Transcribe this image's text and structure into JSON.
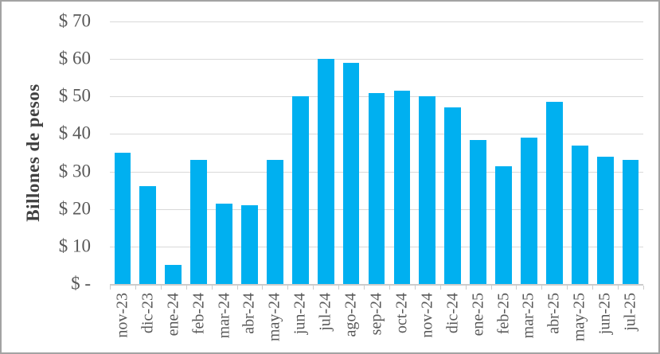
{
  "chart_data": {
    "type": "bar",
    "title": "",
    "ylabel": "Billones de pesos",
    "xlabel": "",
    "categories": [
      "nov-23",
      "dic-23",
      "ene-24",
      "feb-24",
      "mar-24",
      "abr-24",
      "may-24",
      "jun-24",
      "jul-24",
      "ago-24",
      "sep-24",
      "oct-24",
      "nov-24",
      "dic-24",
      "ene-25",
      "feb-25",
      "mar-25",
      "abr-25",
      "may-25",
      "jun-25",
      "jul-25"
    ],
    "values": [
      35,
      26,
      5,
      33,
      21.5,
      21,
      33,
      50,
      60,
      59,
      51,
      51.5,
      50,
      47,
      38.5,
      31.5,
      39,
      48.5,
      37,
      34,
      33
    ],
    "ylim": [
      0,
      70
    ],
    "grid": true,
    "legend": "none",
    "y_axis": {
      "title": "Billones de pesos",
      "ticks": [
        {
          "label": "$ -",
          "value": 0
        },
        {
          "label": "$ 10",
          "value": 10
        },
        {
          "label": "$ 20",
          "value": 20
        },
        {
          "label": "$ 30",
          "value": 30
        },
        {
          "label": "$ 40",
          "value": 40
        },
        {
          "label": "$ 50",
          "value": 50
        },
        {
          "label": "$ 60",
          "value": 60
        },
        {
          "label": "$ 70",
          "value": 70
        }
      ]
    },
    "colors": {
      "bar": "#00b0f0",
      "gridline": "#d9d9d9",
      "axis_line": "#cccccc",
      "tick_text": "#595959",
      "axis_title_text": "#404040",
      "frame_border": "#a3a3a3",
      "background": "#ffffff"
    }
  }
}
